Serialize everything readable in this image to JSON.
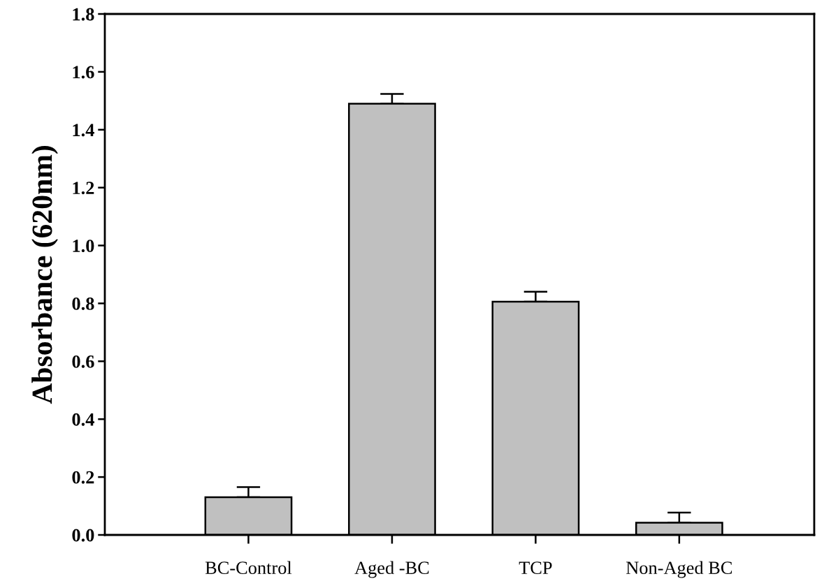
{
  "chart_data": {
    "type": "bar",
    "ylabel": "Absorbance (620nm)",
    "categories": [
      "BC-Control",
      "Aged -BC",
      "TCP",
      "Non-Aged BC"
    ],
    "values": [
      0.13,
      1.49,
      0.806,
      0.042
    ],
    "errors": [
      [
        0.13,
        0.165
      ],
      [
        1.49,
        1.524
      ],
      [
        0.806,
        0.84
      ],
      [
        0.042,
        0.077
      ]
    ],
    "color": "#c0c0c0",
    "ylim": [
      0,
      1.8
    ],
    "yticks": [
      {
        "value": 0,
        "label": "0.0"
      },
      {
        "value": 0.2,
        "label": "0.2"
      },
      {
        "value": 0.4,
        "label": "0.4"
      },
      {
        "value": 0.6,
        "label": "0.6"
      },
      {
        "value": 0.8,
        "label": "0.8"
      },
      {
        "value": 1.0,
        "label": "1.0"
      },
      {
        "value": 1.2,
        "label": "1.2"
      },
      {
        "value": 1.4,
        "label": "1.4"
      },
      {
        "value": 1.6,
        "label": "1.6"
      },
      {
        "value": 1.8,
        "label": "1.8"
      }
    ]
  }
}
